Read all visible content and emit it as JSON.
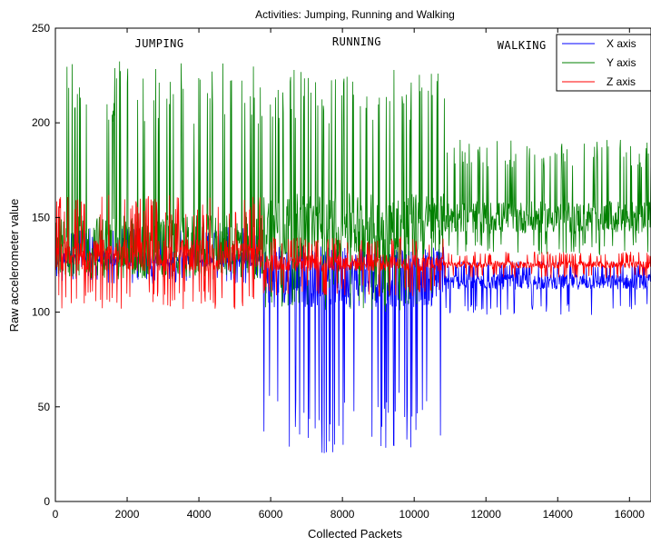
{
  "chart_data": {
    "type": "line",
    "title": "Activities: Jumping, Running and Walking",
    "xlabel": "Collected Packets",
    "ylabel": "Raw accelerometer value",
    "xlim": [
      0,
      16600
    ],
    "ylim": [
      0,
      250
    ],
    "xticks": [
      0,
      2000,
      4000,
      6000,
      8000,
      10000,
      12000,
      14000,
      16000
    ],
    "yticks": [
      0,
      50,
      100,
      150,
      200,
      250
    ],
    "grid": false,
    "legend_position": "top-right",
    "annotations": [
      {
        "text": "JUMPING",
        "x": 2900,
        "y": 240
      },
      {
        "text": "RUNNING",
        "x": 8400,
        "y": 241
      },
      {
        "text": "WALKING",
        "x": 13000,
        "y": 239
      }
    ],
    "segments": [
      {
        "activity": "JUMPING",
        "x_start": 0,
        "x_end": 5800
      },
      {
        "activity": "RUNNING",
        "x_start": 5800,
        "x_end": 10850
      },
      {
        "activity": "WALKING",
        "x_start": 10850,
        "x_end": 16600
      }
    ],
    "series": [
      {
        "name": "X axis",
        "color": "#0000ff",
        "JUMPING": {
          "center": 128,
          "min": 115,
          "max": 145
        },
        "RUNNING": {
          "center": 118,
          "min": 25,
          "max": 135
        },
        "WALKING": {
          "center": 116,
          "min": 98,
          "max": 127
        }
      },
      {
        "name": "Y axis",
        "color": "#008000",
        "JUMPING": {
          "center": 135,
          "min": 117,
          "max": 233
        },
        "RUNNING": {
          "center": 145,
          "min": 100,
          "max": 228
        },
        "WALKING": {
          "center": 150,
          "min": 130,
          "max": 191
        }
      },
      {
        "name": "Z axis",
        "color": "#ff0000",
        "JUMPING": {
          "center": 130,
          "min": 101,
          "max": 162
        },
        "RUNNING": {
          "center": 126,
          "min": 108,
          "max": 140
        },
        "WALKING": {
          "center": 125,
          "min": 118,
          "max": 132
        }
      }
    ]
  }
}
